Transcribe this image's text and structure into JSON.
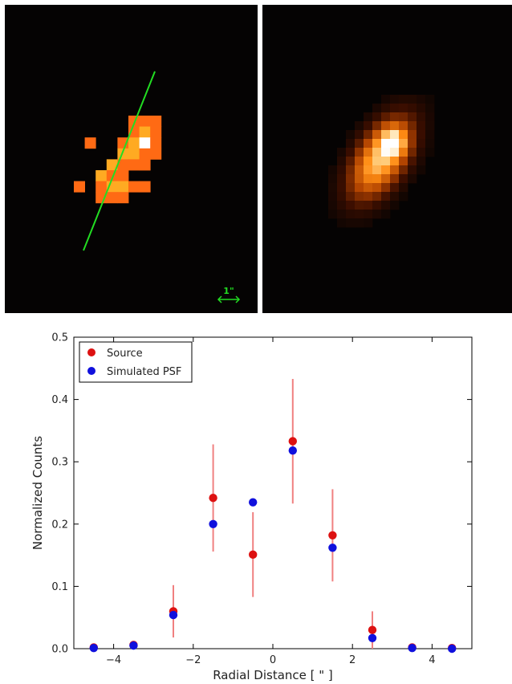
{
  "images": {
    "scale_bar_label": "1\""
  },
  "colors": {
    "source": "#dd1111",
    "psf": "#1010dd",
    "errorbar": "#f08080",
    "green_line": "#22dd22",
    "panel_bg": "#050303"
  },
  "chart_data": {
    "type": "scatter",
    "xlabel": "Radial Distance [ \" ]",
    "ylabel": "Normalized Counts",
    "xlim": [
      -5,
      5
    ],
    "ylim": [
      0,
      0.5
    ],
    "xticks": [
      -4,
      -2,
      0,
      2,
      4
    ],
    "xtick_labels": [
      "−4",
      "−2",
      "0",
      "2",
      "4"
    ],
    "yticks": [
      0.0,
      0.1,
      0.2,
      0.3,
      0.4,
      0.5
    ],
    "ytick_labels": [
      "0.0",
      "0.1",
      "0.2",
      "0.3",
      "0.4",
      "0.5"
    ],
    "legend_position": "top-left",
    "series": [
      {
        "name": "Source",
        "color": "#dd1111",
        "x": [
          -4.5,
          -3.5,
          -2.5,
          -1.5,
          -0.5,
          0.5,
          1.5,
          2.5,
          3.5,
          4.5
        ],
        "y": [
          0.002,
          0.006,
          0.06,
          0.242,
          0.151,
          0.333,
          0.182,
          0.03,
          0.002,
          0.001
        ],
        "yerr": [
          0,
          0,
          0.042,
          0.086,
          0.068,
          0.1,
          0.074,
          0.03,
          0,
          0
        ]
      },
      {
        "name": "Simulated PSF",
        "color": "#1010dd",
        "x": [
          -4.5,
          -3.5,
          -2.5,
          -1.5,
          -0.5,
          0.5,
          1.5,
          2.5,
          3.5,
          4.5
        ],
        "y": [
          0.001,
          0.005,
          0.054,
          0.2,
          0.235,
          0.318,
          0.162,
          0.017,
          0.001,
          0.0
        ]
      }
    ]
  }
}
